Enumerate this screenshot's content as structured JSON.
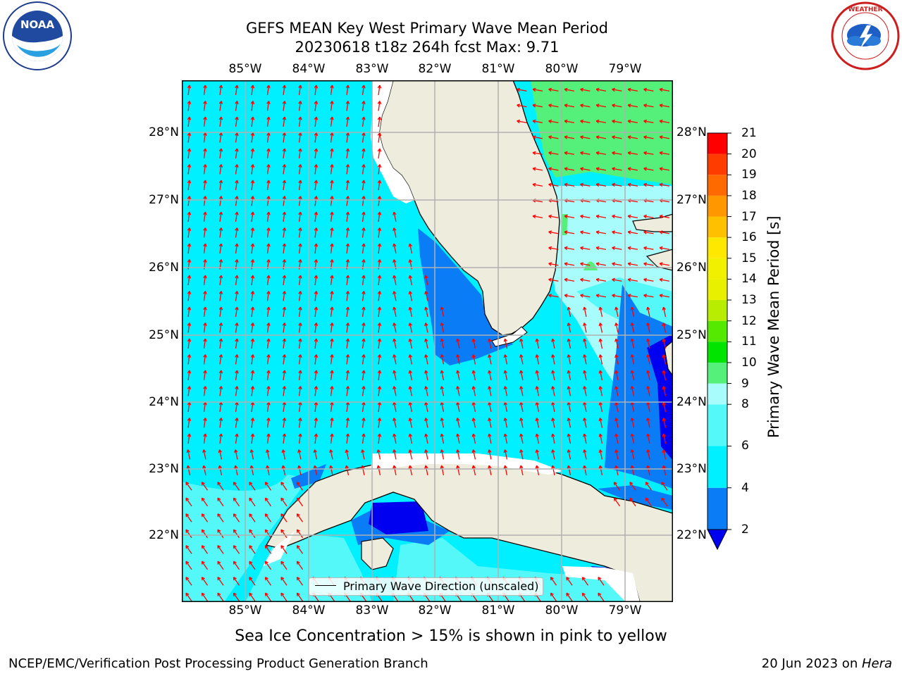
{
  "title": {
    "line1": "GEFS MEAN Key West Primary Wave Mean Period",
    "line2": "20230618 t18z 264h fcst   Max: 9.71"
  },
  "logos": {
    "left_name": "NOAA",
    "right_name": "NATIONAL WEATHER SERVICE"
  },
  "map": {
    "lon_ticks": [
      "85°W",
      "84°W",
      "83°W",
      "82°W",
      "81°W",
      "80°W",
      "79°W"
    ],
    "lat_ticks": [
      "28°N",
      "27°N",
      "26°N",
      "25°N",
      "24°N",
      "23°N",
      "22°N"
    ],
    "legend_label": "Primary Wave Direction (unscaled)",
    "vector_color": "#ff0000",
    "land_color": "#eeecdc"
  },
  "colorbar": {
    "label": "Primary Wave Mean Period [s]",
    "ticks": [
      "21",
      "20",
      "19",
      "18",
      "17",
      "16",
      "15",
      "14",
      "13",
      "12",
      "11",
      "10",
      "9",
      "8",
      "6",
      "4",
      "2"
    ],
    "levels": [
      {
        "lo": 2,
        "hi": 4,
        "color": "#0a7cf5"
      },
      {
        "lo": 4,
        "hi": 6,
        "color": "#00f0ff"
      },
      {
        "lo": 6,
        "hi": 8,
        "color": "#55f8f8"
      },
      {
        "lo": 8,
        "hi": 9,
        "color": "#a8fcfc"
      },
      {
        "lo": 9,
        "hi": 10,
        "color": "#55f07a"
      },
      {
        "lo": 10,
        "hi": 11,
        "color": "#00e400"
      },
      {
        "lo": 11,
        "hi": 12,
        "color": "#55e800"
      },
      {
        "lo": 12,
        "hi": 13,
        "color": "#b8ec00"
      },
      {
        "lo": 13,
        "hi": 14,
        "color": "#e8f000"
      },
      {
        "lo": 14,
        "hi": 15,
        "color": "#f0f000"
      },
      {
        "lo": 15,
        "hi": 16,
        "color": "#ffe800"
      },
      {
        "lo": 16,
        "hi": 17,
        "color": "#ffc000"
      },
      {
        "lo": 17,
        "hi": 18,
        "color": "#ff9800"
      },
      {
        "lo": 18,
        "hi": 19,
        "color": "#ff6a00"
      },
      {
        "lo": 19,
        "hi": 20,
        "color": "#ff3c00"
      },
      {
        "lo": 20,
        "hi": 21,
        "color": "#ff0000"
      }
    ],
    "under_color": "#0000f0"
  },
  "note": "Sea Ice Concentration > 15% is shown in pink to yellow",
  "footer": {
    "credit": "NCEP/EMC/Verification Post Processing Product Generation Branch",
    "date": "20 Jun 2023 on ",
    "host": "Hera"
  }
}
